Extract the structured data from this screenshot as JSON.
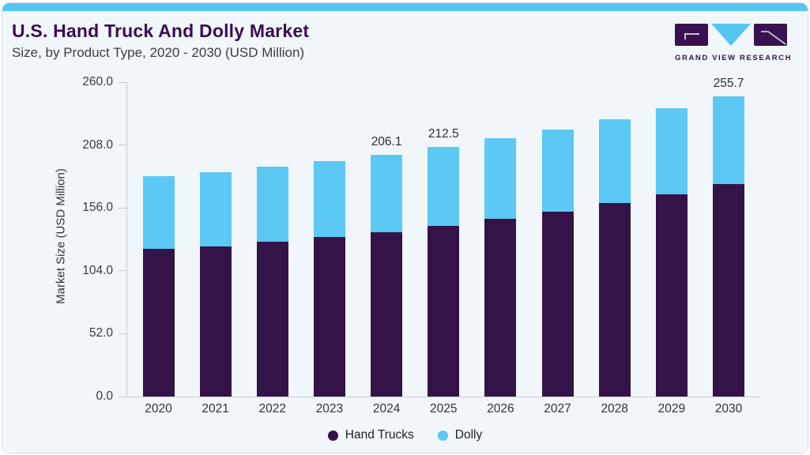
{
  "header": {
    "title": "U.S. Hand Truck And Dolly Market",
    "subtitle": "Size, by Product Type, 2020 - 2030 (USD Million)"
  },
  "logo": {
    "text": "GRAND VIEW RESEARCH"
  },
  "colors": {
    "accent_bar": "#55C6F2",
    "title_purple": "#3A0E52",
    "hand_trucks": "#341348",
    "dolly": "#5CC8F4",
    "card_background": "#F0F6FA"
  },
  "chart_data": {
    "type": "bar",
    "stacked": true,
    "title": "U.S. Hand Truck And Dolly Market Size, by Product Type, 2020 - 2030 (USD Million)",
    "xlabel": "",
    "ylabel": "Market Size (USD Million)",
    "ylim": [
      0,
      260
    ],
    "y_ticks": [
      "260.0",
      "208.0",
      "156.0",
      "104.0",
      "52.0",
      "0.0"
    ],
    "grid": false,
    "legend_position": "bottom",
    "categories": [
      "2020",
      "2021",
      "2022",
      "2023",
      "2024",
      "2025",
      "2026",
      "2027",
      "2028",
      "2029",
      "2030"
    ],
    "series": [
      {
        "name": "Hand Trucks",
        "color": "#341348",
        "values": [
          125.6,
          128.0,
          132.1,
          135.7,
          140.2,
          145.6,
          151.4,
          157.4,
          164.6,
          172.5,
          180.6
        ]
      },
      {
        "name": "Dolly",
        "color": "#5CC8F4",
        "values": [
          62.2,
          63.3,
          63.9,
          64.9,
          65.9,
          66.9,
          68.2,
          70.2,
          71.6,
          72.9,
          75.1
        ]
      }
    ],
    "totals": [
      187.8,
      191.3,
      196.0,
      200.6,
      206.1,
      212.5,
      219.6,
      227.6,
      236.2,
      245.4,
      255.7
    ],
    "annotated_totals": {
      "2024": "206.1",
      "2025": "212.5",
      "2030": "255.7"
    }
  }
}
